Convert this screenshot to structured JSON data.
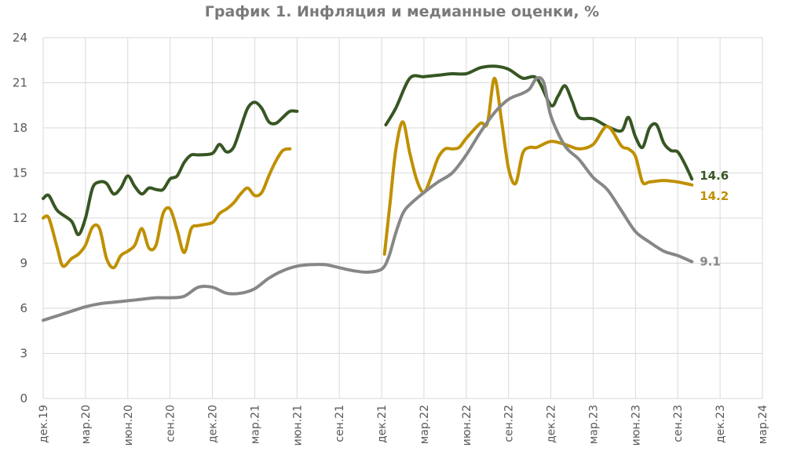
{
  "title": "График 1. Инфляция и медианные оценки, %",
  "chart_data": {
    "type": "line",
    "title": "График 1. Инфляция и медианные оценки, %",
    "xlabel": "",
    "ylabel": "",
    "ylim": [
      0,
      24
    ],
    "yticks": [
      0,
      3,
      6,
      9,
      12,
      15,
      18,
      21,
      24
    ],
    "grid": true,
    "legend": "none",
    "x_labels": [
      {
        "i": 0,
        "label": "дек.19"
      },
      {
        "i": 3,
        "label": "мар.20"
      },
      {
        "i": 6,
        "label": "июн.20"
      },
      {
        "i": 9,
        "label": "сен.20"
      },
      {
        "i": 12,
        "label": "дек.20"
      },
      {
        "i": 15,
        "label": "мар.21"
      },
      {
        "i": 18,
        "label": "июн.21"
      },
      {
        "i": 21,
        "label": "сен.21"
      },
      {
        "i": 24,
        "label": "дек.21"
      },
      {
        "i": 27,
        "label": "мар.22"
      },
      {
        "i": 30,
        "label": "июн.22"
      },
      {
        "i": 33,
        "label": "сен.22"
      },
      {
        "i": 36,
        "label": "дек.22"
      },
      {
        "i": 39,
        "label": "мар.23"
      },
      {
        "i": 42,
        "label": "июн.23"
      },
      {
        "i": 45,
        "label": "сен.23"
      },
      {
        "i": 48,
        "label": "дек.23"
      },
      {
        "i": 51,
        "label": "мар.24"
      }
    ],
    "series": [
      {
        "color": "#375623",
        "end_label": "14.6",
        "points": [
          [
            0,
            13.3
          ],
          [
            0.4,
            13.5
          ],
          [
            1,
            12.5
          ],
          [
            2,
            11.8
          ],
          [
            2.5,
            10.9
          ],
          [
            3,
            12.0
          ],
          [
            3.5,
            14.0
          ],
          [
            4,
            14.4
          ],
          [
            4.5,
            14.3
          ],
          [
            5,
            13.6
          ],
          [
            5.5,
            14.0
          ],
          [
            6,
            14.8
          ],
          [
            6.5,
            14.1
          ],
          [
            7,
            13.6
          ],
          [
            7.5,
            14.0
          ],
          [
            8,
            13.9
          ],
          [
            8.5,
            13.9
          ],
          [
            9,
            14.6
          ],
          [
            9.5,
            14.8
          ],
          [
            10,
            15.7
          ],
          [
            10.5,
            16.2
          ],
          [
            11,
            16.2
          ],
          [
            12,
            16.3
          ],
          [
            12.5,
            16.9
          ],
          [
            13,
            16.4
          ],
          [
            13.5,
            16.7
          ],
          [
            14,
            18.0
          ],
          [
            14.5,
            19.3
          ],
          [
            15,
            19.7
          ],
          [
            15.5,
            19.3
          ],
          [
            16,
            18.4
          ],
          [
            16.5,
            18.3
          ],
          [
            17,
            18.7
          ],
          [
            17.5,
            19.1
          ],
          [
            18,
            19.1
          ],
          null,
          [
            24.3,
            18.2
          ],
          [
            25,
            19.3
          ],
          [
            26,
            21.3
          ],
          [
            27,
            21.4
          ],
          [
            28,
            21.5
          ],
          [
            29,
            21.6
          ],
          [
            30,
            21.6
          ],
          [
            31,
            22.0
          ],
          [
            32,
            22.1
          ],
          [
            33,
            21.9
          ],
          [
            34,
            21.3
          ],
          [
            35,
            21.3
          ],
          [
            36,
            19.5
          ],
          [
            36.5,
            20.1
          ],
          [
            37,
            20.8
          ],
          [
            37.5,
            19.8
          ],
          [
            38,
            18.7
          ],
          [
            39,
            18.6
          ],
          [
            40,
            18.1
          ],
          [
            41,
            17.8
          ],
          [
            41.5,
            18.7
          ],
          [
            42,
            17.4
          ],
          [
            42.5,
            16.7
          ],
          [
            43,
            18.0
          ],
          [
            43.5,
            18.2
          ],
          [
            44,
            17.0
          ],
          [
            44.5,
            16.5
          ],
          [
            45,
            16.4
          ],
          [
            45.5,
            15.6
          ],
          [
            46,
            14.6
          ]
        ]
      },
      {
        "color": "#bf9000",
        "end_label": "14.2",
        "points": [
          [
            0,
            12.0
          ],
          [
            0.4,
            12.0
          ],
          [
            1,
            10.0
          ],
          [
            1.4,
            8.8
          ],
          [
            2,
            9.3
          ],
          [
            2.5,
            9.6
          ],
          [
            3,
            10.2
          ],
          [
            3.5,
            11.4
          ],
          [
            4,
            11.3
          ],
          [
            4.5,
            9.3
          ],
          [
            5,
            8.7
          ],
          [
            5.5,
            9.5
          ],
          [
            6,
            9.8
          ],
          [
            6.5,
            10.2
          ],
          [
            7,
            11.3
          ],
          [
            7.5,
            10.0
          ],
          [
            8,
            10.2
          ],
          [
            8.5,
            12.3
          ],
          [
            9,
            12.6
          ],
          [
            9.5,
            11.2
          ],
          [
            10,
            9.7
          ],
          [
            10.5,
            11.3
          ],
          [
            11,
            11.5
          ],
          [
            12,
            11.7
          ],
          [
            12.5,
            12.3
          ],
          [
            13,
            12.6
          ],
          [
            13.5,
            13.0
          ],
          [
            14,
            13.6
          ],
          [
            14.5,
            14.0
          ],
          [
            15,
            13.5
          ],
          [
            15.5,
            13.7
          ],
          [
            16,
            14.8
          ],
          [
            16.5,
            15.8
          ],
          [
            17,
            16.5
          ],
          [
            17.5,
            16.6
          ],
          null,
          [
            24.2,
            9.6
          ],
          [
            24.6,
            13.0
          ],
          [
            25,
            16.5
          ],
          [
            25.5,
            18.4
          ],
          [
            26,
            16.3
          ],
          [
            26.5,
            14.5
          ],
          [
            27,
            13.7
          ],
          [
            27.5,
            14.7
          ],
          [
            28,
            16.0
          ],
          [
            28.5,
            16.6
          ],
          [
            29,
            16.6
          ],
          [
            29.5,
            16.7
          ],
          [
            30,
            17.3
          ],
          [
            31,
            18.3
          ],
          [
            31.5,
            18.3
          ],
          [
            32,
            21.3
          ],
          [
            32.5,
            18.5
          ],
          [
            33,
            15.3
          ],
          [
            33.5,
            14.3
          ],
          [
            34,
            16.3
          ],
          [
            34.5,
            16.7
          ],
          [
            35,
            16.7
          ],
          [
            36,
            17.1
          ],
          [
            37,
            16.9
          ],
          [
            38,
            16.6
          ],
          [
            39,
            16.9
          ],
          [
            40,
            18.1
          ],
          [
            41,
            16.8
          ],
          [
            41.5,
            16.6
          ],
          [
            42,
            16.1
          ],
          [
            42.5,
            14.4
          ],
          [
            43,
            14.4
          ],
          [
            44,
            14.5
          ],
          [
            45,
            14.4
          ],
          [
            46,
            14.2
          ]
        ]
      },
      {
        "color": "#878787",
        "end_label": "9.1",
        "points": [
          [
            0,
            5.2
          ],
          [
            1,
            5.5
          ],
          [
            2,
            5.8
          ],
          [
            3,
            6.1
          ],
          [
            4,
            6.3
          ],
          [
            5,
            6.4
          ],
          [
            6,
            6.5
          ],
          [
            7,
            6.6
          ],
          [
            8,
            6.7
          ],
          [
            9,
            6.7
          ],
          [
            10,
            6.8
          ],
          [
            11,
            7.4
          ],
          [
            12,
            7.4
          ],
          [
            13,
            7.0
          ],
          [
            14,
            7.0
          ],
          [
            15,
            7.3
          ],
          [
            16,
            8.0
          ],
          [
            17,
            8.5
          ],
          [
            18,
            8.8
          ],
          [
            19,
            8.9
          ],
          [
            20,
            8.9
          ],
          [
            21,
            8.7
          ],
          [
            22,
            8.5
          ],
          [
            23,
            8.4
          ],
          [
            24,
            8.6
          ],
          [
            24.5,
            9.4
          ],
          [
            25,
            11.0
          ],
          [
            25.5,
            12.3
          ],
          [
            26,
            12.9
          ],
          [
            27,
            13.7
          ],
          [
            28,
            14.4
          ],
          [
            29,
            15.0
          ],
          [
            30,
            16.2
          ],
          [
            31,
            17.7
          ],
          [
            32,
            19.0
          ],
          [
            33,
            19.9
          ],
          [
            34,
            20.3
          ],
          [
            34.5,
            20.6
          ],
          [
            35,
            21.3
          ],
          [
            35.5,
            21.0
          ],
          [
            36,
            18.8
          ],
          [
            37,
            16.8
          ],
          [
            38,
            15.9
          ],
          [
            39,
            14.7
          ],
          [
            40,
            13.9
          ],
          [
            41,
            12.5
          ],
          [
            42,
            11.1
          ],
          [
            43,
            10.4
          ],
          [
            44,
            9.8
          ],
          [
            45,
            9.5
          ],
          [
            46,
            9.1
          ]
        ]
      }
    ]
  }
}
